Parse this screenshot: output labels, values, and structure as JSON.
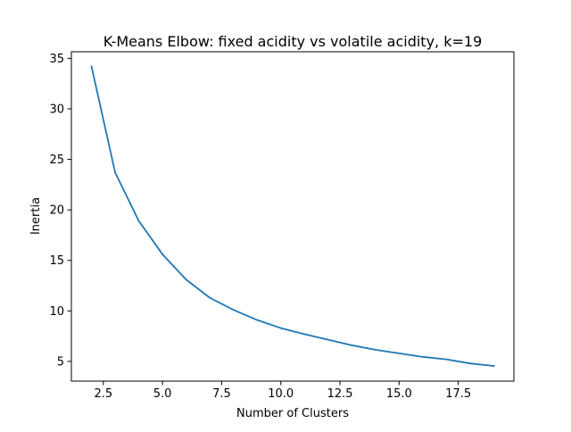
{
  "chart_data": {
    "type": "line",
    "title": "K-Means Elbow: fixed acidity vs volatile acidity, k=19",
    "xlabel": "Number of Clusters",
    "ylabel": "Inertia",
    "xlim": [
      1.15,
      19.85
    ],
    "ylim": [
      3.05,
      35.65
    ],
    "xticks": [
      2.5,
      5.0,
      7.5,
      10.0,
      12.5,
      15.0,
      17.5
    ],
    "xtick_labels": [
      "2.5",
      "5.0",
      "7.5",
      "10.0",
      "12.5",
      "15.0",
      "17.5"
    ],
    "yticks": [
      5,
      10,
      15,
      20,
      25,
      30,
      35
    ],
    "ytick_labels": [
      "5",
      "10",
      "15",
      "20",
      "25",
      "30",
      "35"
    ],
    "grid": false,
    "line_color": "#1f77b4",
    "series": [
      {
        "x": [
          2,
          3,
          4,
          5,
          6,
          7,
          8,
          9,
          10,
          11,
          12,
          13,
          14,
          15,
          16,
          17,
          18,
          19
        ],
        "values": [
          34.2,
          23.7,
          18.9,
          15.6,
          13.1,
          11.3,
          10.1,
          9.1,
          8.3,
          7.7,
          7.15,
          6.6,
          6.15,
          5.8,
          5.45,
          5.2,
          4.8,
          4.55
        ]
      }
    ]
  }
}
